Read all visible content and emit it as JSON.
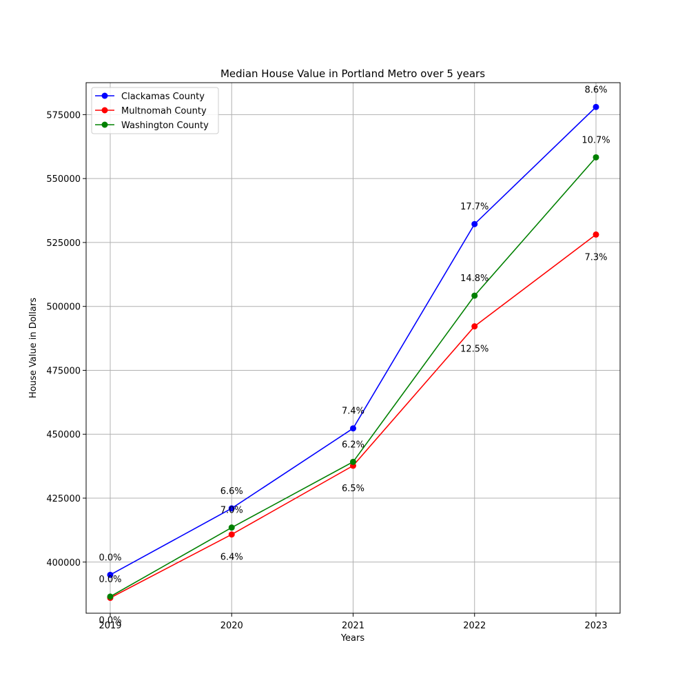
{
  "chart_data": {
    "type": "line",
    "title": "Median House Value in Portland Metro over 5 years",
    "xlabel": "Years",
    "ylabel": "House Value in Dollars",
    "x": [
      "2019",
      "2020",
      "2021",
      "2022",
      "2023"
    ],
    "yticks": [
      "400000",
      "425000",
      "450000",
      "475000",
      "500000",
      "525000",
      "550000",
      "575000"
    ],
    "ylim": [
      380000,
      587500
    ],
    "grid": true,
    "legend_position": "top-left",
    "series": [
      {
        "name": "Clackamas County",
        "color": "#0000ff",
        "values": [
          395000,
          421000,
          452300,
          532200,
          578000
        ],
        "annotations": [
          "0.0%",
          "6.6%",
          "7.4%",
          "17.7%",
          "8.6%"
        ],
        "label_side": "above"
      },
      {
        "name": "Multnomah County",
        "color": "#ff0000",
        "values": [
          386000,
          410800,
          437700,
          492200,
          528100
        ],
        "annotations": [
          "0.0%",
          "6.4%",
          "6.5%",
          "12.5%",
          "7.3%"
        ],
        "label_side": "below"
      },
      {
        "name": "Washington County",
        "color": "#008000",
        "values": [
          386500,
          413500,
          439200,
          504200,
          558300
        ],
        "annotations": [
          "0.0%",
          "7.0%",
          "6.2%",
          "14.8%",
          "10.7%"
        ],
        "label_side": "above"
      }
    ]
  }
}
